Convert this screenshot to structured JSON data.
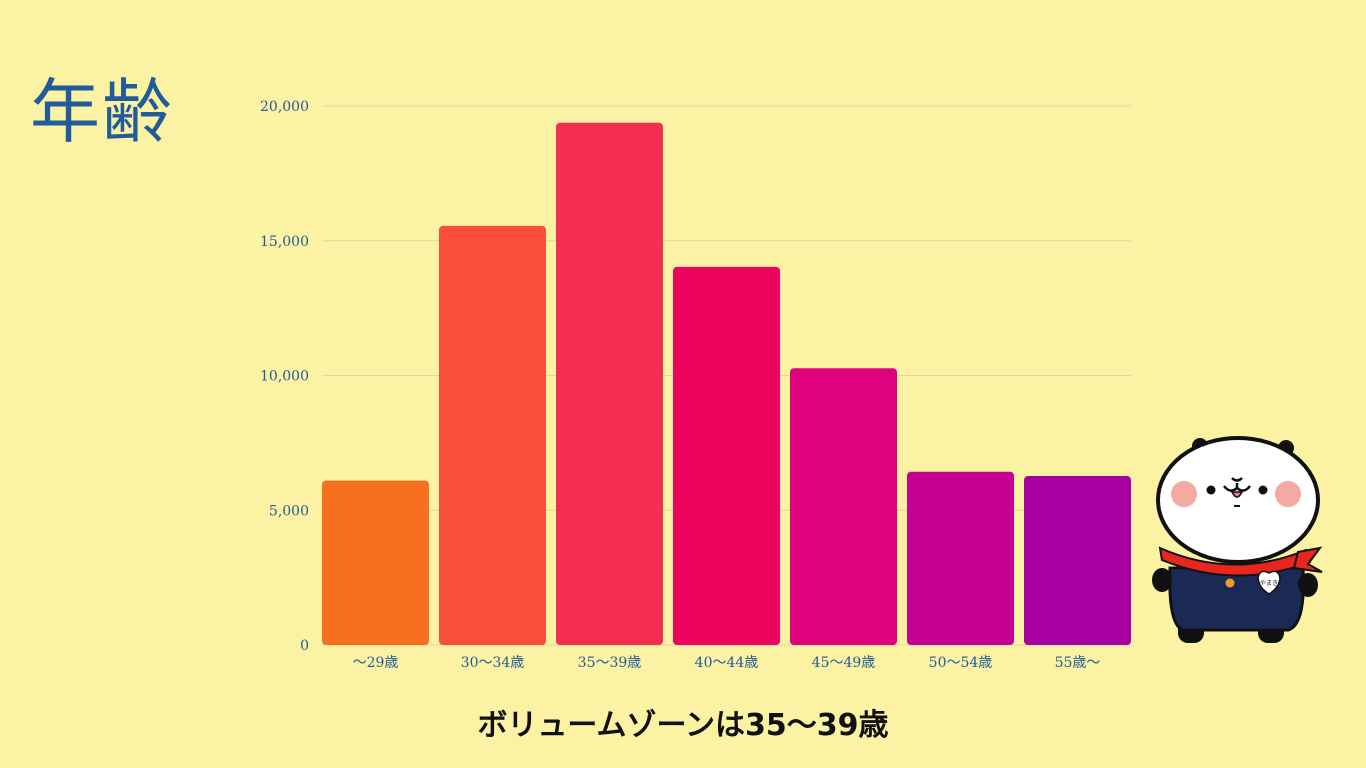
{
  "title": "年齢",
  "caption": "ボリュームゾーンは35～39歳",
  "mascot": {
    "badge_text": "やまき",
    "icon": "panda-mascot-icon"
  },
  "chart_data": {
    "type": "bar",
    "title": "",
    "xlabel": "",
    "ylabel": "",
    "categories": [
      "～29歳",
      "30～34歳",
      "35～39歳",
      "40～44歳",
      "45～49歳",
      "50～54歳",
      "55歳～"
    ],
    "values": [
      6100,
      15550,
      19380,
      14030,
      10270,
      6430,
      6270
    ],
    "bar_colors": [
      "#f7701f",
      "#f94f3a",
      "#f42e50",
      "#ec045f",
      "#de037c",
      "#c60191",
      "#a701a2"
    ],
    "ylim": [
      0,
      20000
    ],
    "yticks": [
      0,
      5000,
      10000,
      15000,
      20000
    ],
    "ytick_labels": [
      "0",
      "5,000",
      "10,000",
      "15,000",
      "20,000"
    ],
    "grid": true,
    "legend": "none"
  },
  "colors": {
    "background": "#fbf2a4",
    "title": "#1f5c99",
    "tick_text": "#1f5c99",
    "gridline": "#e0d8a0"
  }
}
